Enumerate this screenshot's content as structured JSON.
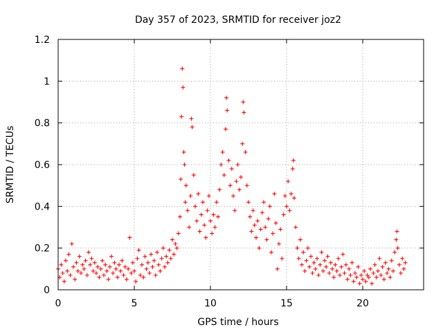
{
  "chart_data": {
    "type": "scatter",
    "title": "Day 357 of 2023, SRMTID for receiver joz2",
    "xlabel": "GPS time / hours",
    "ylabel": "SRMTID / TECUs",
    "xlim": [
      0,
      24
    ],
    "ylim": [
      0,
      1.2
    ],
    "x_ticks": [
      0,
      5,
      10,
      15,
      20
    ],
    "x_tick_labels": [
      "0",
      "5",
      "10",
      "15",
      "20"
    ],
    "y_ticks": [
      0,
      0.2,
      0.4,
      0.6,
      0.8,
      1.0,
      1.2
    ],
    "y_tick_labels": [
      "0",
      "0.2",
      "0.4",
      "0.6",
      "0.8",
      "1",
      "1.2"
    ],
    "grid": true,
    "marker": "plus",
    "series": [
      {
        "name": "SRMTID",
        "color": "#ff0000",
        "points": [
          [
            0.0,
            0.1
          ],
          [
            0.1,
            0.06
          ],
          [
            0.2,
            0.12
          ],
          [
            0.3,
            0.08
          ],
          [
            0.4,
            0.04
          ],
          [
            0.5,
            0.14
          ],
          [
            0.6,
            0.09
          ],
          [
            0.7,
            0.17
          ],
          [
            0.8,
            0.07
          ],
          [
            0.9,
            0.22
          ],
          [
            1.0,
            0.11
          ],
          [
            1.1,
            0.05
          ],
          [
            1.2,
            0.13
          ],
          [
            1.3,
            0.09
          ],
          [
            1.4,
            0.16
          ],
          [
            1.5,
            0.08
          ],
          [
            1.6,
            0.12
          ],
          [
            1.7,
            0.1
          ],
          [
            1.8,
            0.14
          ],
          [
            1.9,
            0.07
          ],
          [
            2.0,
            0.18
          ],
          [
            2.1,
            0.12
          ],
          [
            2.2,
            0.15
          ],
          [
            2.3,
            0.09
          ],
          [
            2.4,
            0.13
          ],
          [
            2.5,
            0.08
          ],
          [
            2.6,
            0.11
          ],
          [
            2.7,
            0.06
          ],
          [
            2.8,
            0.1
          ],
          [
            2.9,
            0.14
          ],
          [
            3.0,
            0.07
          ],
          [
            3.1,
            0.12
          ],
          [
            3.2,
            0.09
          ],
          [
            3.3,
            0.05
          ],
          [
            3.4,
            0.11
          ],
          [
            3.5,
            0.16
          ],
          [
            3.6,
            0.08
          ],
          [
            3.7,
            0.13
          ],
          [
            3.8,
            0.1
          ],
          [
            3.9,
            0.06
          ],
          [
            4.0,
            0.12
          ],
          [
            4.1,
            0.09
          ],
          [
            4.2,
            0.14
          ],
          [
            4.3,
            0.07
          ],
          [
            4.4,
            0.11
          ],
          [
            4.5,
            0.05
          ],
          [
            4.6,
            0.1
          ],
          [
            4.7,
            0.25
          ],
          [
            4.8,
            0.08
          ],
          [
            4.9,
            0.13
          ],
          [
            5.0,
            0.09
          ],
          [
            5.1,
            0.04
          ],
          [
            5.2,
            0.15
          ],
          [
            5.3,
            0.19
          ],
          [
            5.4,
            0.07
          ],
          [
            5.5,
            0.12
          ],
          [
            5.6,
            0.06
          ],
          [
            5.7,
            0.16
          ],
          [
            5.8,
            0.1
          ],
          [
            5.9,
            0.13
          ],
          [
            6.0,
            0.08
          ],
          [
            6.1,
            0.17
          ],
          [
            6.2,
            0.11
          ],
          [
            6.3,
            0.14
          ],
          [
            6.4,
            0.07
          ],
          [
            6.5,
            0.18
          ],
          [
            6.6,
            0.12
          ],
          [
            6.7,
            0.09
          ],
          [
            6.8,
            0.15
          ],
          [
            6.9,
            0.2
          ],
          [
            7.0,
            0.11
          ],
          [
            7.1,
            0.16
          ],
          [
            7.2,
            0.13
          ],
          [
            7.3,
            0.19
          ],
          [
            7.4,
            0.15
          ],
          [
            7.5,
            0.24
          ],
          [
            7.6,
            0.17
          ],
          [
            7.7,
            0.22
          ],
          [
            7.8,
            0.2
          ],
          [
            7.9,
            0.27
          ],
          [
            8.0,
            0.35
          ],
          [
            8.05,
            0.53
          ],
          [
            8.1,
            0.83
          ],
          [
            8.15,
            1.06
          ],
          [
            8.2,
            0.97
          ],
          [
            8.25,
            0.66
          ],
          [
            8.3,
            0.6
          ],
          [
            8.35,
            0.42
          ],
          [
            8.4,
            0.5
          ],
          [
            8.5,
            0.38
          ],
          [
            8.6,
            0.3
          ],
          [
            8.7,
            0.45
          ],
          [
            8.75,
            0.82
          ],
          [
            8.8,
            0.78
          ],
          [
            8.9,
            0.55
          ],
          [
            9.0,
            0.4
          ],
          [
            9.1,
            0.33
          ],
          [
            9.2,
            0.46
          ],
          [
            9.3,
            0.28
          ],
          [
            9.4,
            0.36
          ],
          [
            9.5,
            0.42
          ],
          [
            9.6,
            0.31
          ],
          [
            9.7,
            0.25
          ],
          [
            9.8,
            0.38
          ],
          [
            9.9,
            0.45
          ],
          [
            10.0,
            0.33
          ],
          [
            10.1,
            0.27
          ],
          [
            10.2,
            0.36
          ],
          [
            10.3,
            0.3
          ],
          [
            10.4,
            0.42
          ],
          [
            10.5,
            0.35
          ],
          [
            10.6,
            0.48
          ],
          [
            10.7,
            0.6
          ],
          [
            10.8,
            0.66
          ],
          [
            10.9,
            0.55
          ],
          [
            11.0,
            0.77
          ],
          [
            11.05,
            0.92
          ],
          [
            11.1,
            0.86
          ],
          [
            11.2,
            0.62
          ],
          [
            11.3,
            0.5
          ],
          [
            11.4,
            0.58
          ],
          [
            11.5,
            0.45
          ],
          [
            11.6,
            0.38
          ],
          [
            11.7,
            0.52
          ],
          [
            11.8,
            0.6
          ],
          [
            11.9,
            0.48
          ],
          [
            12.0,
            0.54
          ],
          [
            12.1,
            0.7
          ],
          [
            12.15,
            0.9
          ],
          [
            12.2,
            0.85
          ],
          [
            12.3,
            0.66
          ],
          [
            12.4,
            0.5
          ],
          [
            12.5,
            0.42
          ],
          [
            12.6,
            0.35
          ],
          [
            12.7,
            0.28
          ],
          [
            12.8,
            0.38
          ],
          [
            12.9,
            0.31
          ],
          [
            13.0,
            0.25
          ],
          [
            13.1,
            0.33
          ],
          [
            13.2,
            0.2
          ],
          [
            13.3,
            0.29
          ],
          [
            13.4,
            0.37
          ],
          [
            13.5,
            0.42
          ],
          [
            13.6,
            0.3
          ],
          [
            13.7,
            0.24
          ],
          [
            13.8,
            0.34
          ],
          [
            13.9,
            0.4
          ],
          [
            14.0,
            0.18
          ],
          [
            14.1,
            0.27
          ],
          [
            14.2,
            0.46
          ],
          [
            14.3,
            0.32
          ],
          [
            14.4,
            0.1
          ],
          [
            14.5,
            0.22
          ],
          [
            14.6,
            0.29
          ],
          [
            14.7,
            0.15
          ],
          [
            14.8,
            0.36
          ],
          [
            14.9,
            0.45
          ],
          [
            15.0,
            0.4
          ],
          [
            15.1,
            0.52
          ],
          [
            15.2,
            0.38
          ],
          [
            15.3,
            0.46
          ],
          [
            15.4,
            0.58
          ],
          [
            15.45,
            0.62
          ],
          [
            15.5,
            0.44
          ],
          [
            15.6,
            0.3
          ],
          [
            15.7,
            0.2
          ],
          [
            15.8,
            0.15
          ],
          [
            15.9,
            0.24
          ],
          [
            16.0,
            0.12
          ],
          [
            16.1,
            0.18
          ],
          [
            16.2,
            0.09
          ],
          [
            16.3,
            0.14
          ],
          [
            16.4,
            0.2
          ],
          [
            16.5,
            0.11
          ],
          [
            16.6,
            0.16
          ],
          [
            16.7,
            0.08
          ],
          [
            16.8,
            0.13
          ],
          [
            16.9,
            0.1
          ],
          [
            17.0,
            0.15
          ],
          [
            17.1,
            0.07
          ],
          [
            17.2,
            0.12
          ],
          [
            17.3,
            0.18
          ],
          [
            17.4,
            0.09
          ],
          [
            17.5,
            0.14
          ],
          [
            17.6,
            0.11
          ],
          [
            17.7,
            0.16
          ],
          [
            17.8,
            0.08
          ],
          [
            17.9,
            0.13
          ],
          [
            18.0,
            0.1
          ],
          [
            18.1,
            0.06
          ],
          [
            18.2,
            0.12
          ],
          [
            18.3,
            0.09
          ],
          [
            18.4,
            0.15
          ],
          [
            18.5,
            0.07
          ],
          [
            18.6,
            0.11
          ],
          [
            18.7,
            0.17
          ],
          [
            18.8,
            0.08
          ],
          [
            18.9,
            0.12
          ],
          [
            19.0,
            0.05
          ],
          [
            19.1,
            0.1
          ],
          [
            19.2,
            0.07
          ],
          [
            19.3,
            0.13
          ],
          [
            19.4,
            0.04
          ],
          [
            19.5,
            0.08
          ],
          [
            19.6,
            0.06
          ],
          [
            19.7,
            0.11
          ],
          [
            19.8,
            0.03
          ],
          [
            19.9,
            0.07
          ],
          [
            20.0,
            0.05
          ],
          [
            20.1,
            0.09
          ],
          [
            20.2,
            0.04
          ],
          [
            20.3,
            0.07
          ],
          [
            20.4,
            0.06
          ],
          [
            20.5,
            0.1
          ],
          [
            20.6,
            0.03
          ],
          [
            20.7,
            0.08
          ],
          [
            20.8,
            0.12
          ],
          [
            20.9,
            0.06
          ],
          [
            21.0,
            0.09
          ],
          [
            21.1,
            0.15
          ],
          [
            21.2,
            0.07
          ],
          [
            21.3,
            0.11
          ],
          [
            21.4,
            0.05
          ],
          [
            21.5,
            0.13
          ],
          [
            21.6,
            0.08
          ],
          [
            21.7,
            0.1
          ],
          [
            21.8,
            0.06
          ],
          [
            21.9,
            0.14
          ],
          [
            22.0,
            0.09
          ],
          [
            22.1,
            0.18
          ],
          [
            22.2,
            0.24
          ],
          [
            22.25,
            0.28
          ],
          [
            22.3,
            0.2
          ],
          [
            22.4,
            0.12
          ],
          [
            22.5,
            0.08
          ],
          [
            22.6,
            0.15
          ],
          [
            22.7,
            0.1
          ],
          [
            22.8,
            0.13
          ]
        ]
      }
    ]
  }
}
